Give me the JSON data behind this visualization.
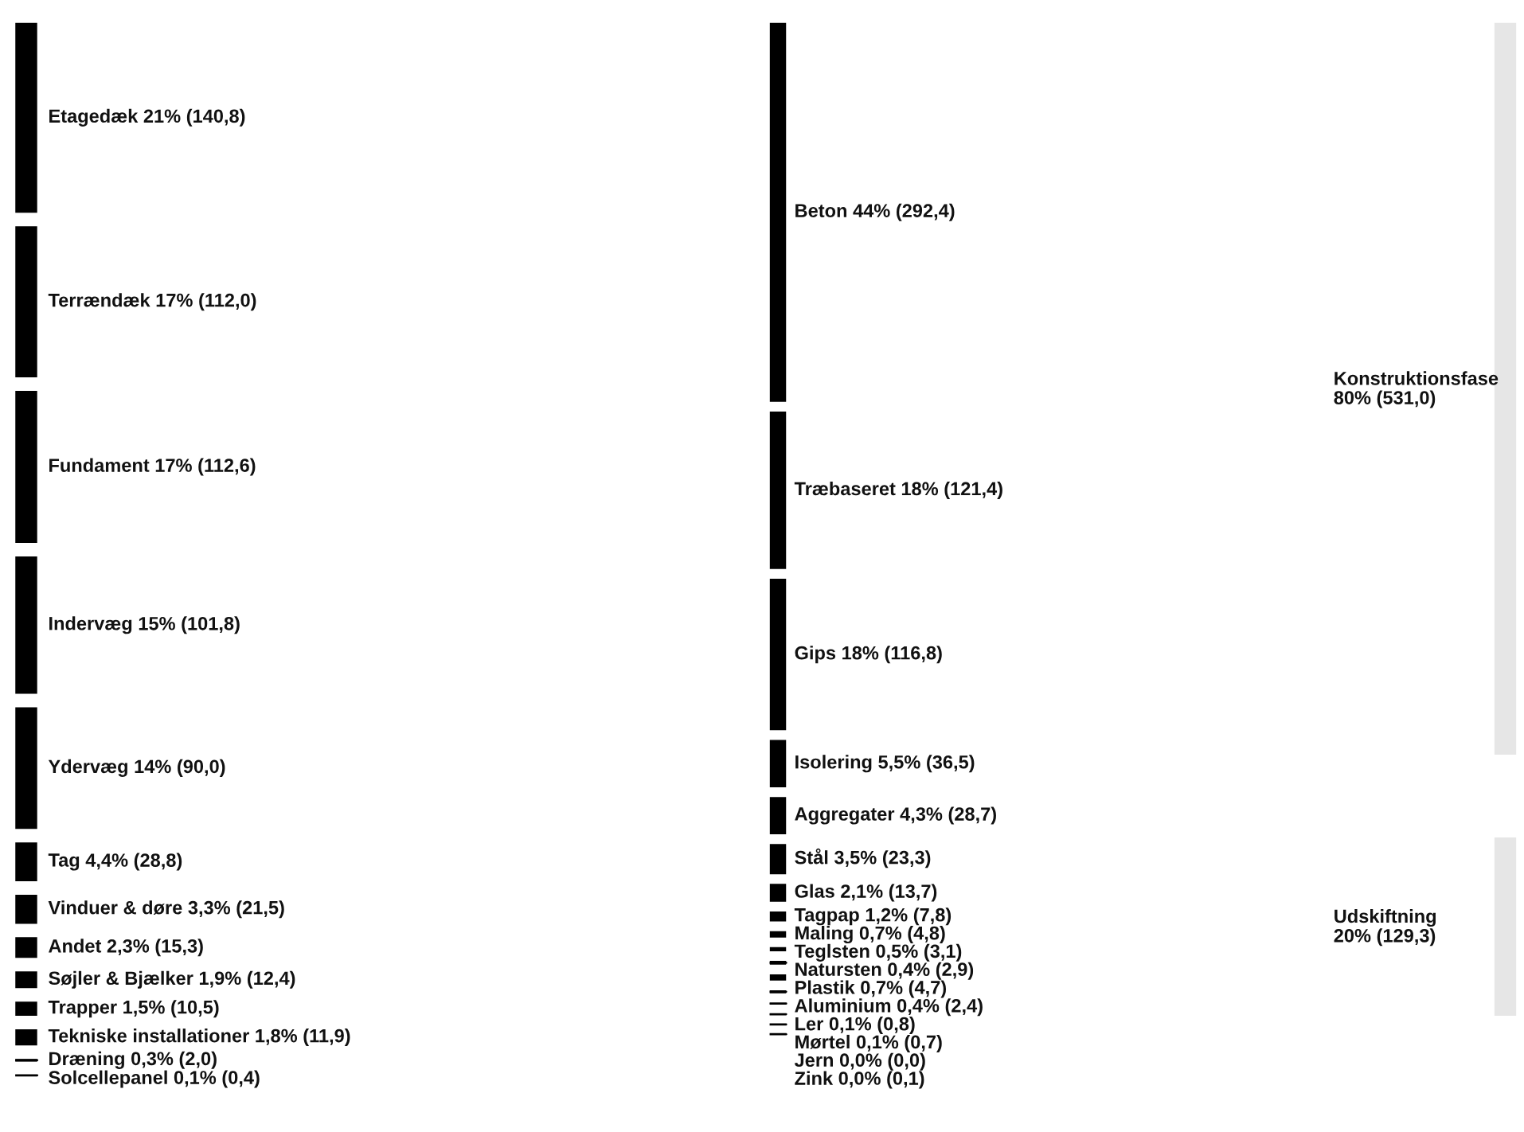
{
  "chart_data": [
    {
      "type": "other",
      "color": "#000000",
      "categories": [
        "Etagedæk",
        "Terrændæk",
        "Fundament",
        "Indervæg",
        "Ydervæg",
        "Tag",
        "Vinduer & døre",
        "Andet",
        "Søjler & Bjælker",
        "Trapper",
        "Tekniske installationer",
        "Dræning",
        "Solcellepanel"
      ],
      "values": [
        140.8,
        112.0,
        112.6,
        101.8,
        90.0,
        28.8,
        21.5,
        15.3,
        12.4,
        10.5,
        11.9,
        2.0,
        0.4
      ],
      "value_labels": [
        "21% (140,8)",
        "17% (112,0)",
        "17% (112,6)",
        "15% (101,8)",
        "14% (90,0)",
        "4,4% (28,8)",
        "3,3% (21,5)",
        "2,3% (15,3)",
        "1,9% (12,4)",
        "1,5% (10,5)",
        "1,8% (11,9)",
        "0,3% (2,0)",
        "0,1% (0,4)"
      ]
    },
    {
      "type": "other",
      "color": "#000000",
      "categories": [
        "Beton",
        "Træbaseret",
        "Gips",
        "Isolering",
        "Aggregater",
        "Stål",
        "Glas",
        "Tagpap",
        "Maling",
        "Teglsten",
        "Natursten",
        "Plastik",
        "Aluminium",
        "Ler",
        "Mørtel",
        "Jern",
        "Zink"
      ],
      "values": [
        292.4,
        121.4,
        116.8,
        36.5,
        28.7,
        23.3,
        13.7,
        7.8,
        4.8,
        3.1,
        2.9,
        4.7,
        2.4,
        0.8,
        0.7,
        0.0,
        0.1
      ],
      "value_labels": [
        "44% (292,4)",
        "18% (121,4)",
        "18% (116,8)",
        "5,5% (36,5)",
        "4,3% (28,7)",
        "3,5% (23,3)",
        "2,1% (13,7)",
        "1,2% (7,8)",
        "0,7% (4,8)",
        "0,5% (3,1)",
        "0,4% (2,9)",
        "0,7% (4,7)",
        "0,4% (2,4)",
        "0,1% (0,8)",
        "0,1% (0,7)",
        "0,0% (0,0)",
        "0,0% (0,1)"
      ]
    },
    {
      "type": "other",
      "color": "#e6e6e6",
      "categories": [
        "Konstruktionsfase",
        "Udskiftning"
      ],
      "values": [
        531.0,
        129.3
      ],
      "value_labels": [
        "80% (531,0)",
        "20% (129,3)"
      ]
    }
  ]
}
